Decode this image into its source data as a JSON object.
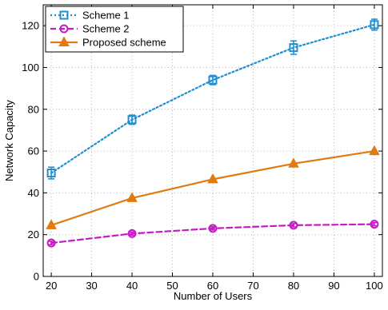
{
  "chart_data": {
    "type": "line",
    "xlabel": "Number of Users",
    "ylabel": "Network Capacity",
    "xlim": [
      18,
      102
    ],
    "ylim": [
      0,
      130
    ],
    "xticks": [
      20,
      30,
      40,
      50,
      60,
      70,
      80,
      90,
      100
    ],
    "yticks": [
      0,
      20,
      40,
      60,
      80,
      100,
      120
    ],
    "grid": true,
    "legend_position": "top-left",
    "series": [
      {
        "name": "Scheme 1",
        "color": "#1e8fd0",
        "line_style": "dotted",
        "marker": "square",
        "x": [
          20,
          40,
          60,
          80,
          100
        ],
        "values": [
          49.5,
          75,
          94,
          109.5,
          120.5
        ],
        "error": [
          2.8,
          2.2,
          2.2,
          3.2,
          2.6
        ]
      },
      {
        "name": "Scheme 2",
        "color": "#c41cc4",
        "line_style": "dashed",
        "marker": "circle",
        "x": [
          20,
          40,
          60,
          80,
          100
        ],
        "values": [
          16,
          20.5,
          23,
          24.5,
          25
        ],
        "error": [
          0.8,
          0.8,
          0.8,
          0.8,
          0.8
        ]
      },
      {
        "name": "Proposed scheme",
        "color": "#e07b10",
        "line_style": "solid",
        "marker": "triangle",
        "x": [
          20,
          40,
          60,
          80,
          100
        ],
        "values": [
          24.5,
          37.5,
          46.5,
          54,
          60
        ],
        "error": [
          0,
          0,
          0,
          0,
          0
        ]
      }
    ]
  }
}
